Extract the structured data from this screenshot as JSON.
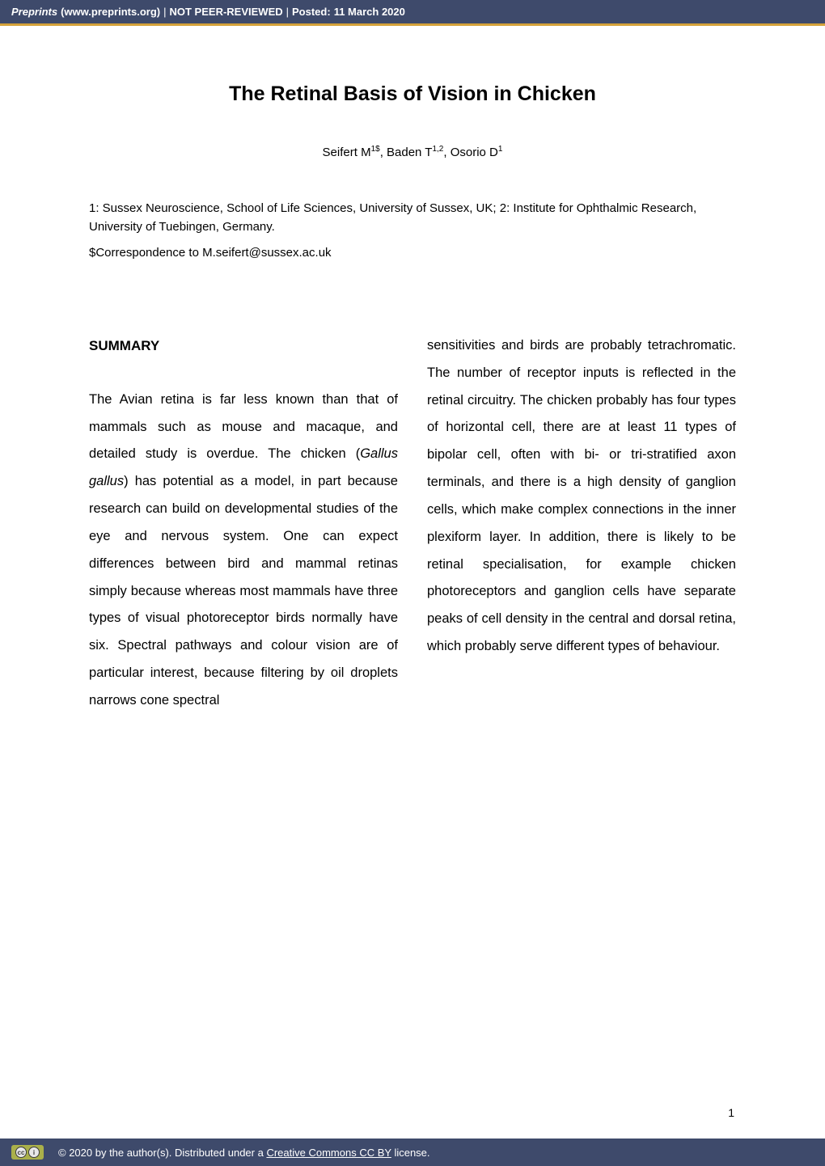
{
  "header": {
    "site": "Preprints",
    "url": "(www.preprints.org)",
    "sep1": "  |  ",
    "not_peer": "NOT PEER-REVIEWED",
    "sep2": "  |  ",
    "posted_label": "Posted:",
    "posted_date": "11 March 2020"
  },
  "paper": {
    "title": "The Retinal Basis of Vision in Chicken",
    "authors_prefix": "Seifert M",
    "authors_sup1": "1$",
    "authors_mid1": ", Baden T",
    "authors_sup2": "1,2",
    "authors_mid2": ", Osorio D",
    "authors_sup3": "1",
    "affiliations": "1: Sussex Neuroscience, School of Life Sciences, University of Sussex, UK; 2: Institute for Ophthalmic Research, University of Tuebingen, Germany.",
    "correspondence": "$Correspondence to M.seifert@sussex.ac.uk",
    "summary_heading": "SUMMARY",
    "col1_a": "The Avian retina is far less known than that of mammals such as mouse and macaque, and detailed study is overdue. The chicken (",
    "col1_species": "Gallus gallus",
    "col1_b": ") has potential as a model, in part because research can build on developmental studies of the eye and nervous system. One can expect differences between bird and mammal retinas simply because whereas most mammals have three types of visual photoreceptor birds normally have six. Spectral pathways and colour vision are of particular interest, because filtering by oil droplets narrows cone spectral",
    "col2": "sensitivities and birds are probably tetrachromatic. The number of receptor inputs is reflected in the retinal circuitry. The chicken probably has four types of horizontal cell, there are at least 11 types of bipolar cell, often with bi- or tri-stratified axon terminals, and there is a high density of ganglion cells, which make complex connections in the inner plexiform layer. In addition, there is likely to be retinal specialisation, for example chicken photoreceptors and ganglion cells have separate peaks of cell density in the central and dorsal retina, which probably serve different types of behaviour.",
    "page_number": "1"
  },
  "footer": {
    "cc_label": "cc",
    "by_symbol": "i",
    "text_prefix": "©  2020 by the author(s). Distributed under a ",
    "link_text": "Creative Commons CC BY",
    "text_suffix": " license."
  },
  "colors": {
    "header_bg": "#3e4a6b",
    "accent": "#d4a23a",
    "badge_bg": "#aab04a"
  }
}
